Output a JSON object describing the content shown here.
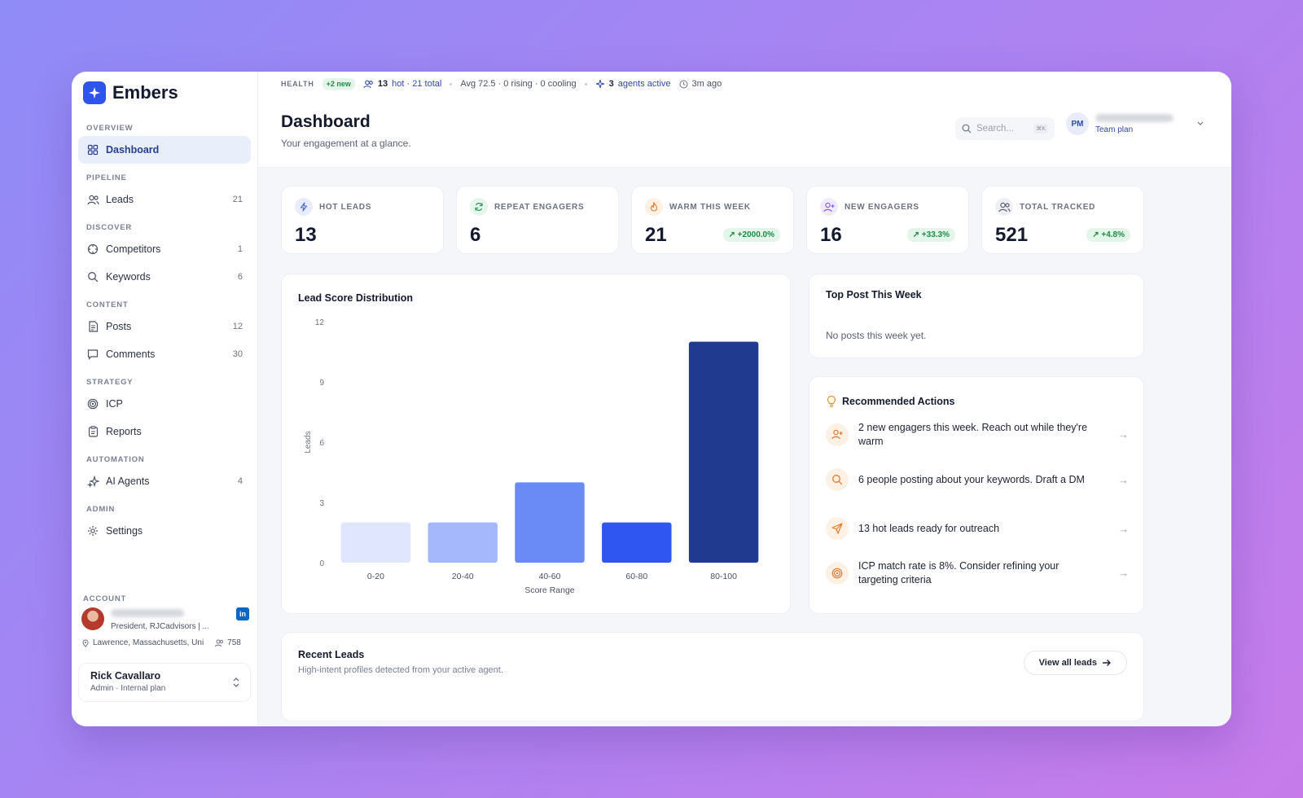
{
  "brand": {
    "name": "Embers"
  },
  "sidebar": {
    "sections": [
      {
        "label": "OVERVIEW",
        "items": [
          {
            "label": "Dashboard",
            "icon": "grid-icon",
            "count": "",
            "active": true
          }
        ]
      },
      {
        "label": "PIPELINE",
        "items": [
          {
            "label": "Leads",
            "icon": "users-icon",
            "count": "21"
          }
        ]
      },
      {
        "label": "DISCOVER",
        "items": [
          {
            "label": "Competitors",
            "icon": "crosshair-icon",
            "count": "1"
          },
          {
            "label": "Keywords",
            "icon": "search-icon",
            "count": "6"
          }
        ]
      },
      {
        "label": "CONTENT",
        "items": [
          {
            "label": "Posts",
            "icon": "document-icon",
            "count": "12"
          },
          {
            "label": "Comments",
            "icon": "comment-icon",
            "count": "30"
          }
        ]
      },
      {
        "label": "STRATEGY",
        "items": [
          {
            "label": "ICP",
            "icon": "target-icon",
            "count": ""
          },
          {
            "label": "Reports",
            "icon": "clipboard-icon",
            "count": ""
          }
        ]
      },
      {
        "label": "AUTOMATION",
        "items": [
          {
            "label": "AI Agents",
            "icon": "sparkles-icon",
            "count": "4"
          }
        ]
      },
      {
        "label": "ADMIN",
        "items": [
          {
            "label": "Settings",
            "icon": "gear-icon",
            "count": ""
          }
        ]
      }
    ],
    "account": {
      "label": "ACCOUNT",
      "title": "President, RJCadvisors | ...",
      "location": "Lawrence, Massachusetts, Uni",
      "connections": "758",
      "linkedin": "in"
    },
    "user": {
      "name": "Rick Cavallaro",
      "role": "Admin · Internal plan"
    }
  },
  "topbar": {
    "health_label": "HEALTH",
    "new_badge": "+2 new",
    "hot_count": "13",
    "hot_text": "hot · 21 total",
    "avg_text": "Avg 72.5 · 0 rising · 0 cooling",
    "agents_count": "3",
    "agents_text": "agents active",
    "updated": "3m ago"
  },
  "header": {
    "title": "Dashboard",
    "subtitle": "Your engagement at a glance.",
    "search_placeholder": "Search...",
    "search_shortcut": "⌘K",
    "user_initials": "PM",
    "plan": "Team plan"
  },
  "stats": [
    {
      "label": "HOT LEADS",
      "value": "13",
      "delta": "",
      "icon": "bolt-icon",
      "color": "#4a63d9",
      "bg": "#e9edfb"
    },
    {
      "label": "REPEAT ENGAGERS",
      "value": "6",
      "delta": "",
      "icon": "refresh-icon",
      "color": "#1f9d55",
      "bg": "#e6f6ec"
    },
    {
      "label": "WARM THIS WEEK",
      "value": "21",
      "delta": "↗ +2000.0%",
      "icon": "flame-icon",
      "color": "#e07a2e",
      "bg": "#fdf0e4"
    },
    {
      "label": "NEW ENGAGERS",
      "value": "16",
      "delta": "↗ +33.3%",
      "icon": "user-plus-icon",
      "color": "#8b5cf6",
      "bg": "#f1ecfd"
    },
    {
      "label": "TOTAL TRACKED",
      "value": "521",
      "delta": "↗ +4.8%",
      "icon": "users-icon",
      "color": "#5b6275",
      "bg": "#eef0f4"
    }
  ],
  "chart_data": {
    "type": "bar",
    "title": "Lead Score Distribution",
    "xlabel": "Score Range",
    "ylabel": "Leads",
    "categories": [
      "0-20",
      "20-40",
      "40-60",
      "60-80",
      "80-100"
    ],
    "values": [
      2,
      2,
      4,
      2,
      11
    ],
    "colors": [
      "#dfe6fd",
      "#a4b8fb",
      "#6a8af6",
      "#2f56f0",
      "#1f3a8f"
    ],
    "ylim": [
      0,
      12
    ],
    "yticks": [
      0,
      3,
      6,
      9,
      12
    ],
    "grid": false
  },
  "top_post": {
    "title": "Top Post This Week",
    "empty": "No posts this week yet."
  },
  "recommended": {
    "title": "Recommended Actions",
    "items": [
      {
        "text": "2 new engagers this week. Reach out while they're warm",
        "icon": "user-plus-icon"
      },
      {
        "text": "6 people posting about your keywords. Draft a DM",
        "icon": "search-icon"
      },
      {
        "text": "13 hot leads ready for outreach",
        "icon": "send-icon"
      },
      {
        "text": "ICP match rate is 8%. Consider refining your targeting criteria",
        "icon": "target-icon"
      }
    ]
  },
  "recent_leads": {
    "title": "Recent Leads",
    "subtitle": "High-intent profiles detected from your active agent.",
    "view_all": "View all leads"
  }
}
